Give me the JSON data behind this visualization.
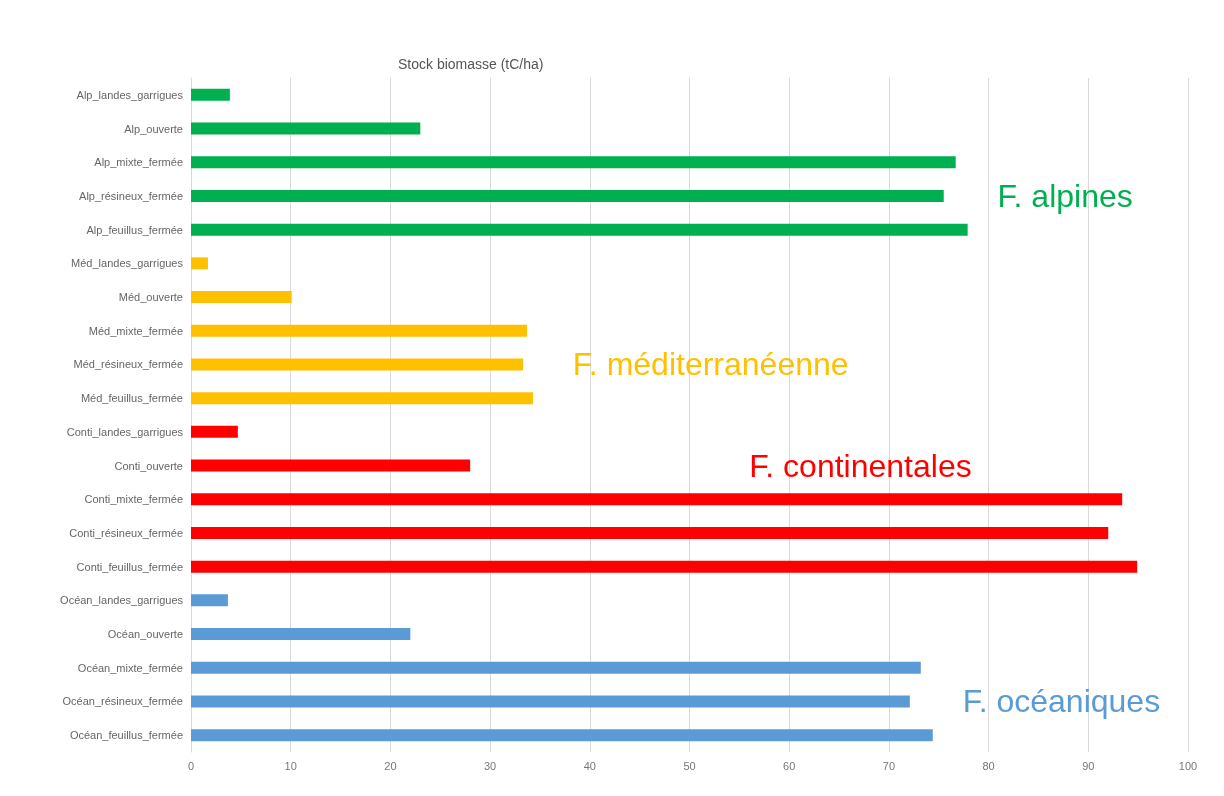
{
  "chart_data": {
    "type": "bar",
    "orientation": "horizontal",
    "stacked": true,
    "title": "Stock biomasse (tC/ha)",
    "categories": [
      "Alp_landes_garrigues",
      "Alp_ouverte",
      "Alp_mixte_fermée",
      "Alp_résineux_fermée",
      "Alp_feuillus_fermée",
      "Méd_landes_garrigues",
      "Méd_ouverte",
      "Méd_mixte_fermée",
      "Méd_résineux_fermée",
      "Méd_feuillus_fermée",
      "Conti_landes_garrigues",
      "Conti_ouverte",
      "Conti_mixte_fermée",
      "Conti_résineux_fermée",
      "Conti_feuillus_fermée",
      "Océan_landes_garrigues",
      "Océan_ouverte",
      "Océan_mixte_fermée",
      "Océan_résineux_fermée",
      "Océan_feuillus_fermée"
    ],
    "series": [
      {
        "name": "F. alpines",
        "color": "#00b050",
        "values": [
          3.9,
          23.0,
          76.7,
          75.5,
          77.9,
          null,
          null,
          null,
          null,
          null,
          null,
          null,
          null,
          null,
          null,
          null,
          null,
          null,
          null,
          null
        ]
      },
      {
        "name": "F. méditerranéenne",
        "color": "#ffc000",
        "values": [
          null,
          null,
          null,
          null,
          null,
          1.7,
          10.1,
          33.7,
          33.3,
          34.3,
          null,
          null,
          null,
          null,
          null,
          null,
          null,
          null,
          null,
          null
        ]
      },
      {
        "name": "F. continentales",
        "color": "#ff0000",
        "values": [
          null,
          null,
          null,
          null,
          null,
          null,
          null,
          null,
          null,
          null,
          4.7,
          28.0,
          93.4,
          92.0,
          94.9,
          null,
          null,
          null,
          null,
          null
        ]
      },
      {
        "name": "F. océaniques",
        "color": "#5b9bd5",
        "values": [
          null,
          null,
          null,
          null,
          null,
          null,
          null,
          null,
          null,
          null,
          null,
          null,
          null,
          null,
          null,
          3.7,
          22.0,
          73.2,
          72.1,
          74.4
        ]
      }
    ],
    "xlim": [
      0,
      100
    ],
    "xticks": [
      0,
      10,
      20,
      30,
      40,
      50,
      60,
      70,
      80,
      90,
      100
    ],
    "grid": "x",
    "legend": false
  }
}
